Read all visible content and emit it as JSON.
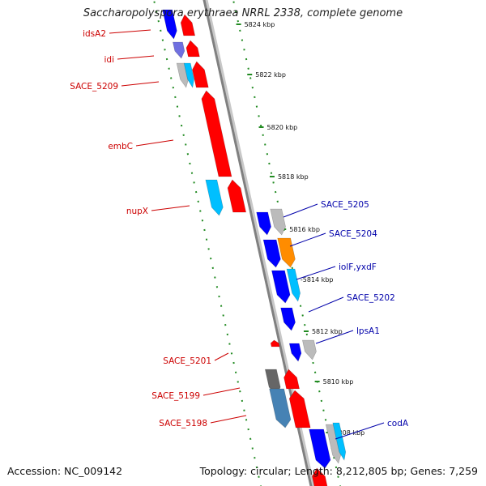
{
  "title": "Saccharopolyspora erythraea NRRL 2338, complete genome",
  "footer": {
    "accession": "Accession: NC_009142",
    "topology": "Topology: circular; Length: 8,212,805 bp; Genes: 7,259"
  },
  "colors": {
    "forward_strand": "#ff0000",
    "reverse_strand": "#0000ff",
    "forward_label": "#cc0000",
    "reverse_label": "#0000aa",
    "backbone": "#808080",
    "tick": "#228b22",
    "orange_gene": "#ff8c00",
    "cyan_gene": "#00bfff",
    "gray_gene": "#bbbbbb"
  },
  "kbp_labels": [
    "5824 kbp",
    "5822 kbp",
    "5820 kbp",
    "5818 kbp",
    "5816 kbp",
    "-5814 kbp",
    "5812 kbp",
    "5810 kbp",
    "5808 kbp"
  ],
  "forward_gene_labels": [
    "idsA2",
    "idi",
    "SACE_5209",
    "embC",
    "nupX",
    "SACE_5201",
    "SACE_5199",
    "SACE_5198"
  ],
  "reverse_gene_labels": [
    "SACE_5205",
    "SACE_5204",
    "iolF,yxdF",
    "SACE_5202",
    "lpsA1",
    "codA"
  ]
}
